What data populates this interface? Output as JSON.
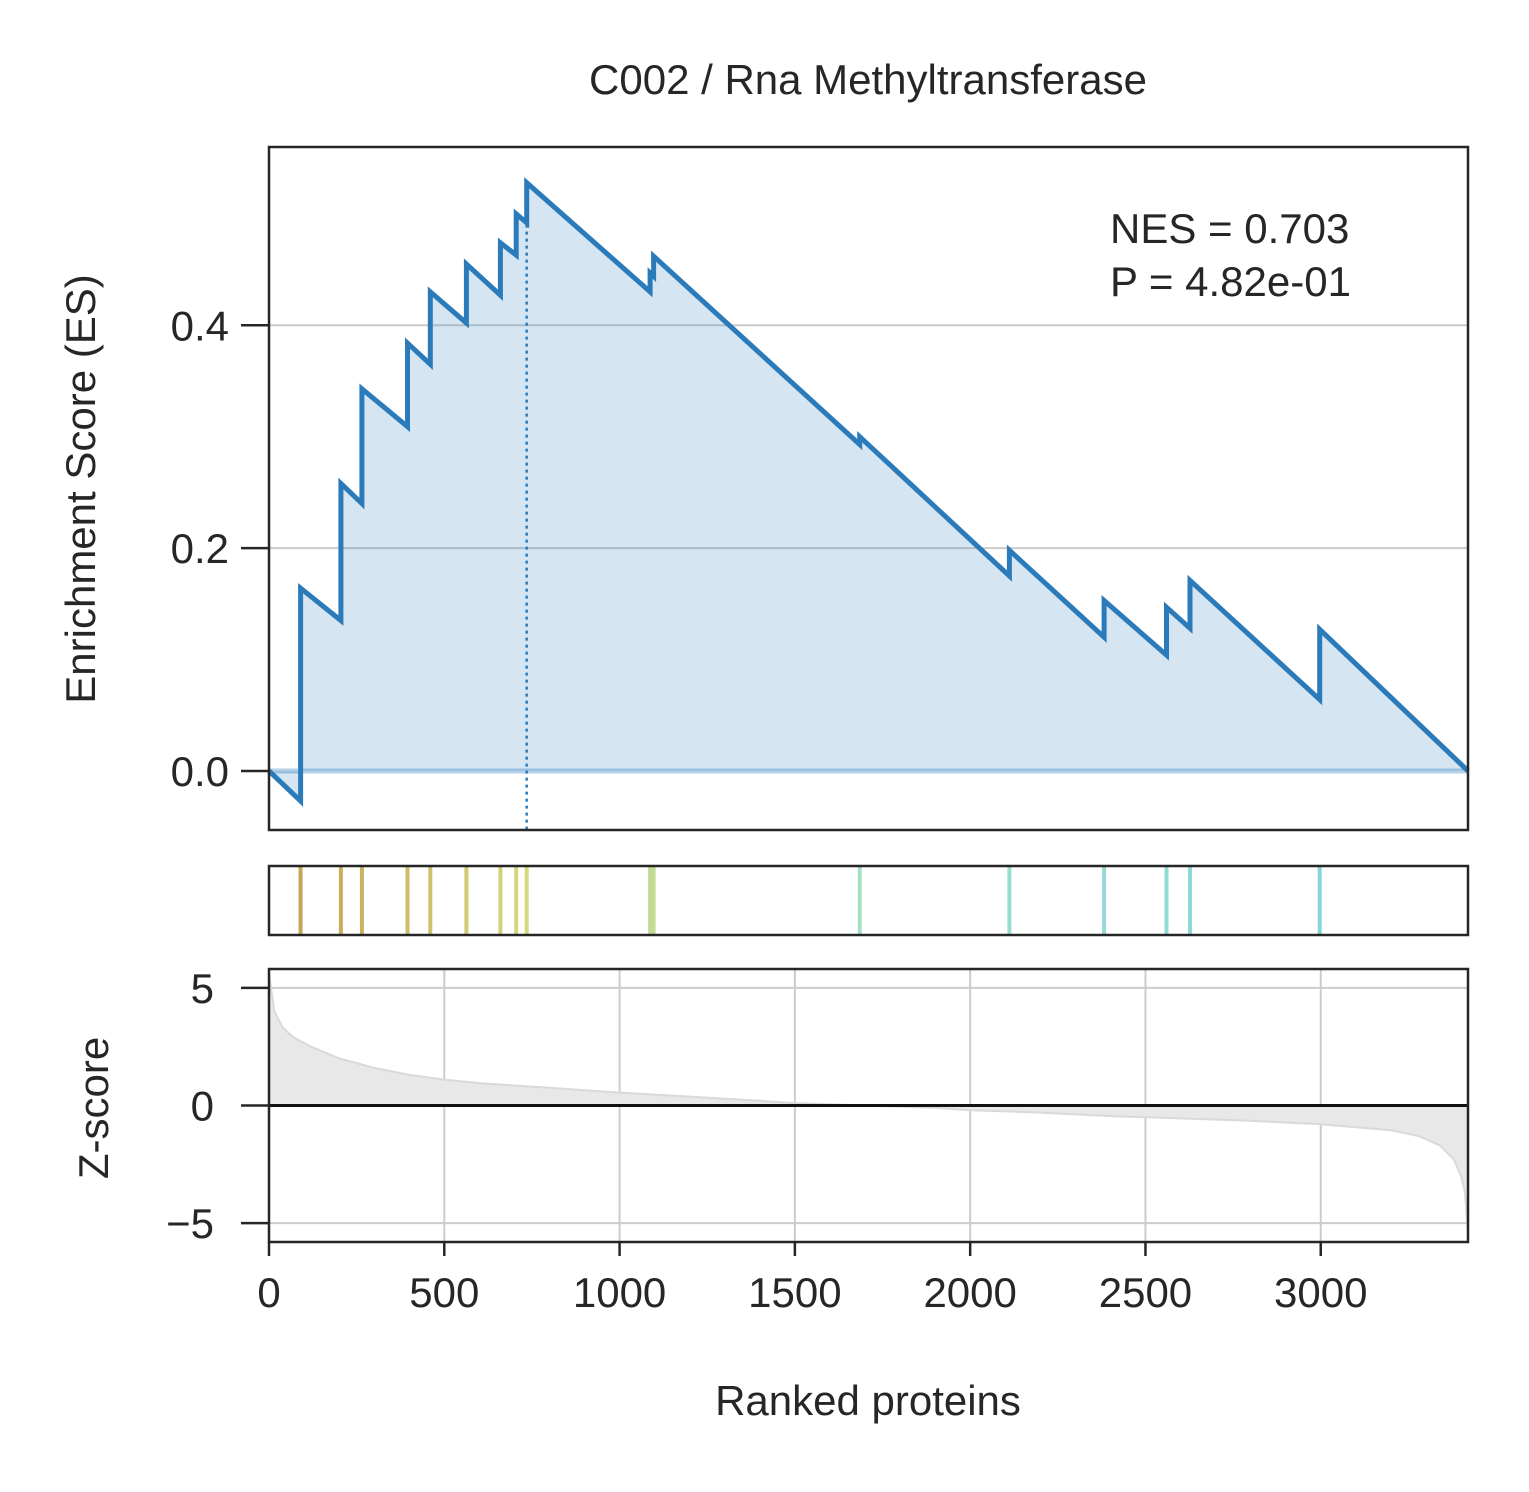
{
  "title": "C002 / Rna Methyltransferase",
  "annotation": {
    "nes": "NES = 0.703",
    "p": "P = 4.82e-01"
  },
  "colors": {
    "es_line": "#2b7bba",
    "es_fill": "#2b7bba",
    "grid": "#cccccc",
    "axis": "#262626",
    "zscore_fill": "#e8e8e8",
    "zscore_line": "#d9d9d9"
  },
  "chart_data": [
    {
      "type": "line",
      "name": "enrichment-score",
      "ylabel": "Enrichment Score (ES)",
      "xlim": [
        0,
        3420
      ],
      "ylim": [
        -0.053,
        0.56
      ],
      "yticks": [
        0.0,
        0.2,
        0.4
      ],
      "ytick_labels": [
        "0.0",
        "0.2",
        "0.4"
      ],
      "grid": "horizontal",
      "peak_x": 735,
      "points": [
        [
          0,
          0.0
        ],
        [
          90,
          -0.027
        ],
        [
          90,
          0.164
        ],
        [
          205,
          0.135
        ],
        [
          205,
          0.258
        ],
        [
          265,
          0.24
        ],
        [
          265,
          0.343
        ],
        [
          395,
          0.309
        ],
        [
          395,
          0.384
        ],
        [
          460,
          0.365
        ],
        [
          460,
          0.43
        ],
        [
          563,
          0.402
        ],
        [
          563,
          0.455
        ],
        [
          660,
          0.427
        ],
        [
          660,
          0.474
        ],
        [
          705,
          0.463
        ],
        [
          705,
          0.5
        ],
        [
          735,
          0.492
        ],
        [
          735,
          0.528
        ],
        [
          1087,
          0.43
        ],
        [
          1087,
          0.447
        ],
        [
          1097,
          0.444
        ],
        [
          1097,
          0.462
        ],
        [
          1685,
          0.293
        ],
        [
          1685,
          0.3
        ],
        [
          2112,
          0.175
        ],
        [
          2112,
          0.198
        ],
        [
          2382,
          0.12
        ],
        [
          2382,
          0.153
        ],
        [
          2560,
          0.104
        ],
        [
          2560,
          0.147
        ],
        [
          2627,
          0.128
        ],
        [
          2627,
          0.171
        ],
        [
          2997,
          0.064
        ],
        [
          2997,
          0.127
        ],
        [
          3420,
          0.0
        ]
      ]
    },
    {
      "type": "rug",
      "name": "hit-positions",
      "positions": [
        90,
        205,
        265,
        395,
        460,
        563,
        660,
        705,
        735,
        1087,
        1097,
        1685,
        2112,
        2382,
        2560,
        2627,
        2997
      ]
    },
    {
      "type": "area",
      "name": "ranked-z-scores",
      "ylabel": "Z-score",
      "xlabel": "Ranked proteins",
      "xlim": [
        0,
        3420
      ],
      "ylim": [
        -5.8,
        5.8
      ],
      "xticks": [
        0,
        500,
        1000,
        1500,
        2000,
        2500,
        3000
      ],
      "xtick_labels": [
        "0",
        "500",
        "1000",
        "1500",
        "2000",
        "2500",
        "3000"
      ],
      "yticks": [
        5,
        0,
        -5
      ],
      "ytick_labels": [
        "5",
        "0",
        "−5"
      ],
      "grid": "both",
      "points": [
        [
          0,
          5.6
        ],
        [
          15,
          4.0
        ],
        [
          40,
          3.3
        ],
        [
          70,
          2.9
        ],
        [
          120,
          2.5
        ],
        [
          200,
          2.0
        ],
        [
          300,
          1.6
        ],
        [
          400,
          1.3
        ],
        [
          500,
          1.1
        ],
        [
          600,
          0.95
        ],
        [
          700,
          0.85
        ],
        [
          800,
          0.75
        ],
        [
          900,
          0.65
        ],
        [
          1000,
          0.55
        ],
        [
          1200,
          0.38
        ],
        [
          1400,
          0.2
        ],
        [
          1500,
          0.1
        ],
        [
          1700,
          0.0
        ],
        [
          1900,
          -0.1
        ],
        [
          2000,
          -0.2
        ],
        [
          2200,
          -0.3
        ],
        [
          2400,
          -0.45
        ],
        [
          2600,
          -0.55
        ],
        [
          2800,
          -0.65
        ],
        [
          3000,
          -0.8
        ],
        [
          3200,
          -1.05
        ],
        [
          3280,
          -1.3
        ],
        [
          3340,
          -1.7
        ],
        [
          3380,
          -2.3
        ],
        [
          3400,
          -3.0
        ],
        [
          3410,
          -3.6
        ],
        [
          3415,
          -4.3
        ],
        [
          3420,
          -5.6
        ]
      ]
    }
  ]
}
